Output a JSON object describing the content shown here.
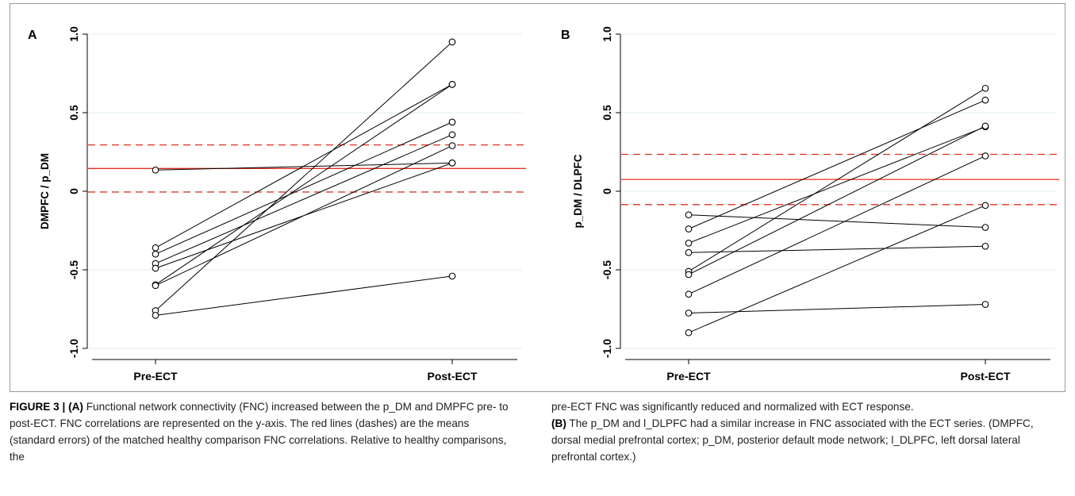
{
  "figure": {
    "caption_left": {
      "fig_num": "FIGURE 3 | ",
      "label_a": "(A)",
      "text": " Functional network connectivity (FNC) increased between the p_DM and DMPFC pre- to post-ECT. FNC correlations are represented on the y-axis. The red lines (dashes) are the means (standard errors) of the matched healthy comparison FNC correlations. Relative to healthy comparisons, the"
    },
    "caption_right": {
      "text1": "pre-ECT FNC was significantly reduced and normalized with ECT response.",
      "label_b": "(B)",
      "text2": " The p_DM and l_DLPFC had a similar increase in FNC associated with the ECT series. (DMPFC, dorsal medial prefrontal cortex; p_DM, posterior default mode network; l_DLPFC, left dorsal lateral prefrontal cortex.)"
    }
  },
  "colors": {
    "mean_line": "#e0301e",
    "grid": "#dfeef0",
    "data": "#000000"
  },
  "chart_data": [
    {
      "panel_label": "A",
      "type": "line",
      "x_categories": [
        "Pre-ECT",
        "Post-ECT"
      ],
      "ylabel": "DMPFC / p_DM",
      "ylim": [
        -1.0,
        1.0
      ],
      "yticks": [
        "-1.0",
        "-0.5",
        "0",
        "0.5",
        "1.0"
      ],
      "ytick_values": [
        -1.0,
        -0.5,
        0,
        0.5,
        1.0
      ],
      "grid": true,
      "reference_lines": {
        "mean": 0.145,
        "upper_se": 0.295,
        "lower_se": -0.005
      },
      "pairs": [
        [
          0.135,
          0.18
        ],
        [
          -0.36,
          0.68
        ],
        [
          -0.4,
          0.44
        ],
        [
          -0.46,
          0.36
        ],
        [
          -0.49,
          0.18
        ],
        [
          -0.595,
          0.68
        ],
        [
          -0.6,
          0.29
        ],
        [
          -0.76,
          0.95
        ],
        [
          -0.79,
          -0.54
        ]
      ]
    },
    {
      "panel_label": "B",
      "type": "line",
      "x_categories": [
        "Pre-ECT",
        "Post-ECT"
      ],
      "ylabel": "p_DM / DLPFC",
      "ylim": [
        -1.0,
        1.0
      ],
      "yticks": [
        "-1.0",
        "-0.5",
        "0",
        "0.5",
        "1.0"
      ],
      "ytick_values": [
        -1.0,
        -0.5,
        0,
        0.5,
        1.0
      ],
      "grid": true,
      "reference_lines": {
        "mean": 0.075,
        "upper_se": 0.235,
        "lower_se": -0.085
      },
      "pairs": [
        [
          -0.15,
          -0.23
        ],
        [
          -0.24,
          0.58
        ],
        [
          -0.33,
          0.41
        ],
        [
          -0.39,
          -0.35
        ],
        [
          -0.51,
          0.655
        ],
        [
          -0.53,
          0.415
        ],
        [
          -0.655,
          0.225
        ],
        [
          -0.775,
          -0.72
        ],
        [
          -0.9,
          -0.09
        ]
      ]
    }
  ]
}
